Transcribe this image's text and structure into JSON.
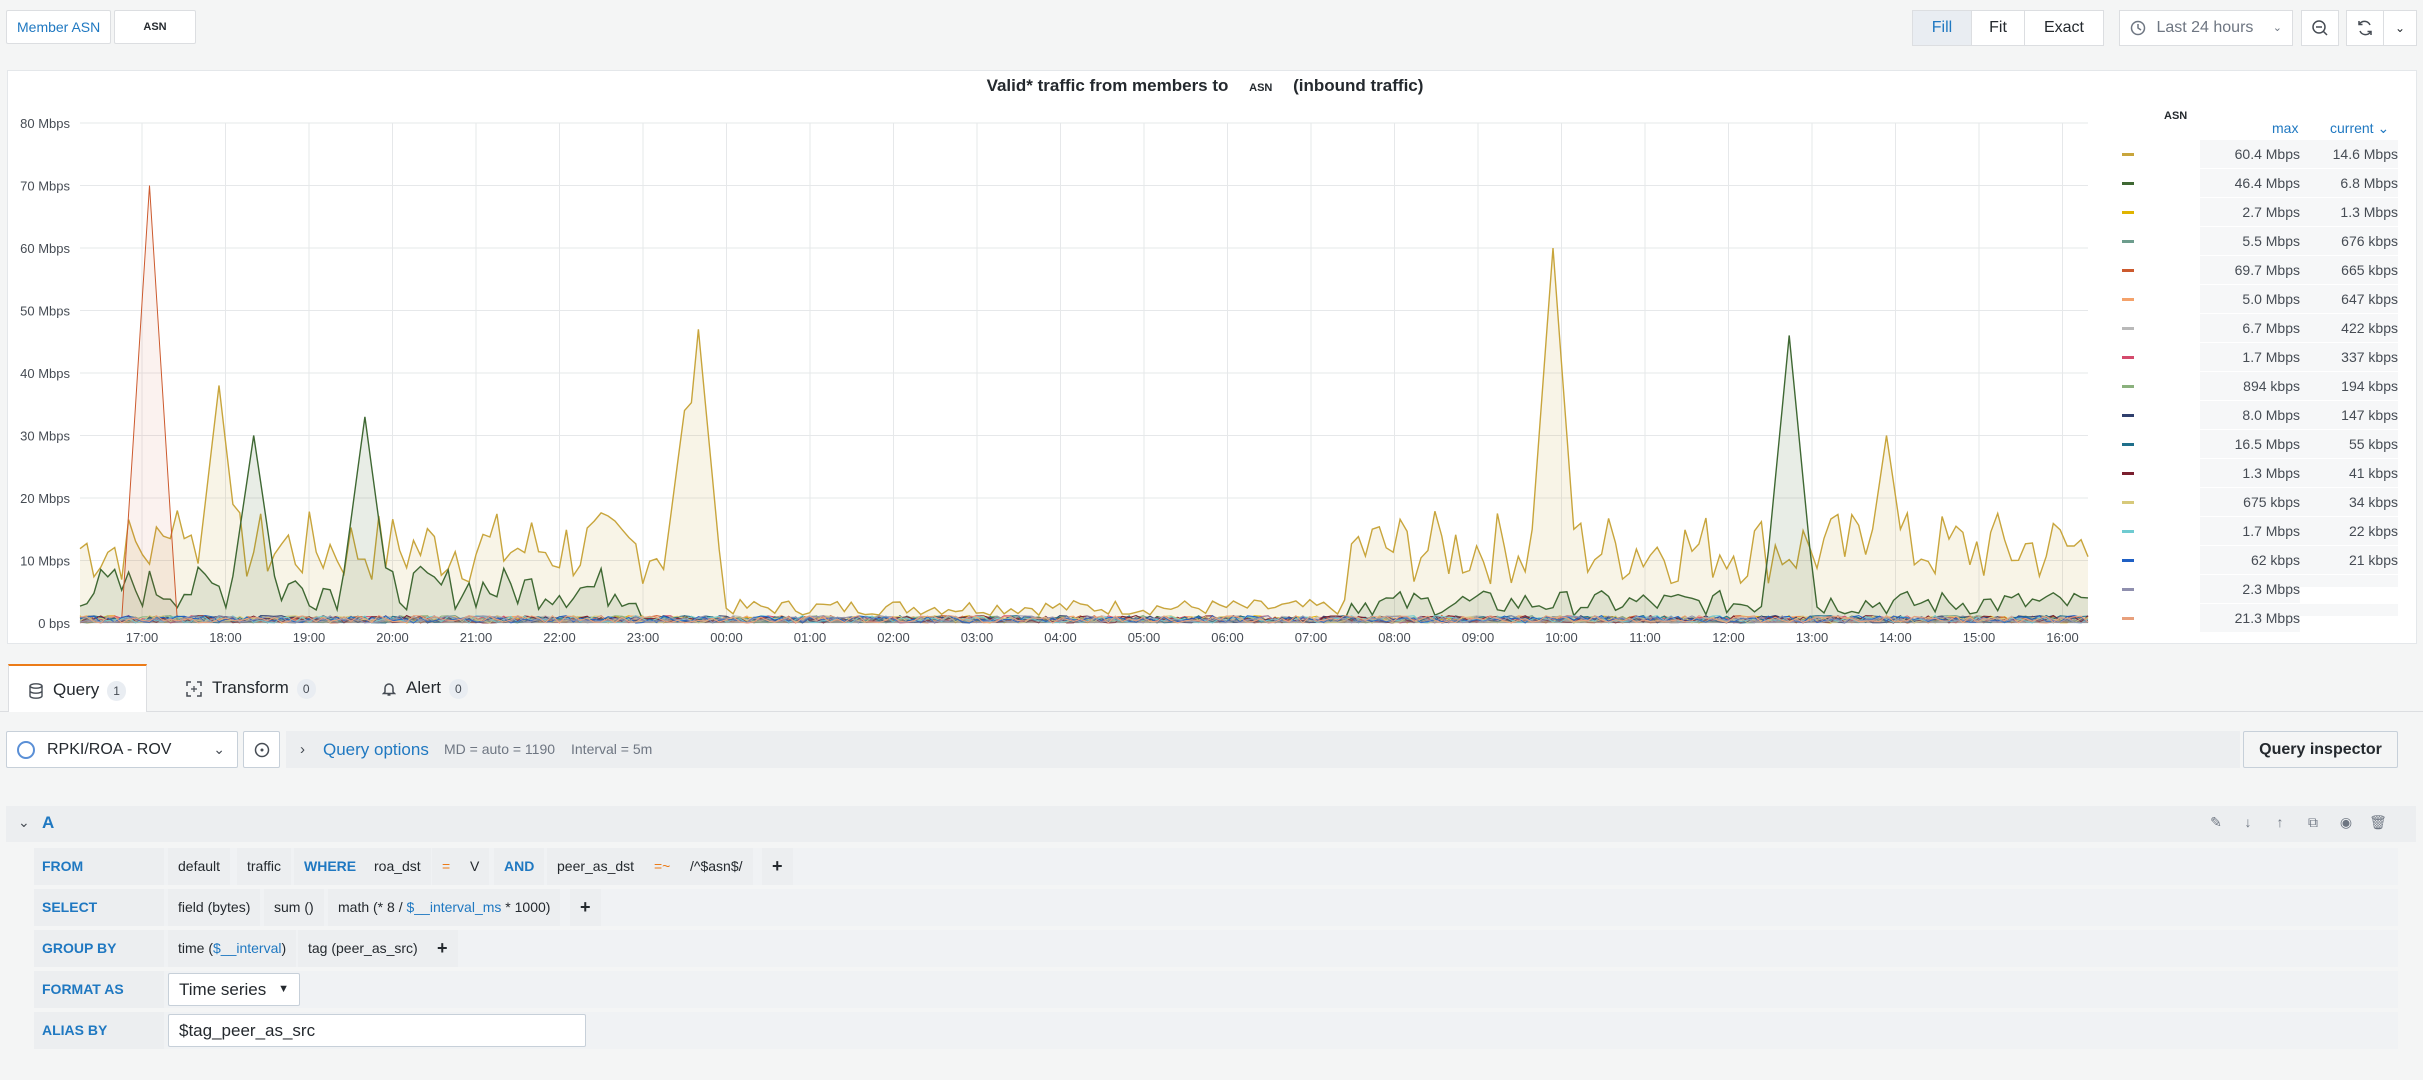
{
  "toolbar": {
    "var_label": "Member ASN",
    "var_value": "ASN",
    "fill": "Fill",
    "fit": "Fit",
    "exact": "Exact",
    "time_range": "Last 24 hours"
  },
  "panel": {
    "title_prefix": "Valid* traffic from members to",
    "title_asn": "ASN",
    "title_suffix": "(inbound traffic)",
    "legend_asn_header": "ASN",
    "legend_max_header": "max",
    "legend_current_header": "current ⌄"
  },
  "chart_data": {
    "type": "area",
    "title": "Valid* traffic from members to ASN (inbound traffic)",
    "ylabel": "",
    "ylim": [
      0,
      80
    ],
    "y_ticks": [
      "0 bps",
      "10 Mbps",
      "20 Mbps",
      "30 Mbps",
      "40 Mbps",
      "50 Mbps",
      "60 Mbps",
      "70 Mbps",
      "80 Mbps"
    ],
    "x_ticks": [
      "17:00",
      "18:00",
      "19:00",
      "20:00",
      "21:00",
      "22:00",
      "23:00",
      "00:00",
      "01:00",
      "02:00",
      "03:00",
      "04:00",
      "05:00",
      "06:00",
      "07:00",
      "08:00",
      "09:00",
      "10:00",
      "11:00",
      "12:00",
      "13:00",
      "14:00",
      "15:00",
      "16:00"
    ],
    "grid": true,
    "legend_placement": "right",
    "series_colors": [
      "#c8a53c",
      "#3f6833",
      "#e0b400",
      "#6d9d8d",
      "#cc5a2e",
      "#f4a26a",
      "#b9b9b9",
      "#d44a6c",
      "#8ab17d",
      "#2f3f6d",
      "#1f6f8b",
      "#7a1f2e",
      "#d7c97a",
      "#6fcbd1",
      "#1f60c4",
      "#8f8fae",
      "#e8a07c"
    ],
    "series": [
      {
        "max": "60.4 Mbps",
        "current": "14.6 Mbps",
        "peaks": [
          [
            0.05,
            18
          ],
          [
            0.07,
            38
          ],
          [
            0.3,
            34
          ],
          [
            0.307,
            47
          ],
          [
            0.735,
            60
          ],
          [
            0.9,
            30
          ]
        ]
      },
      {
        "max": "46.4 Mbps",
        "current": "6.8 Mbps",
        "peaks": [
          [
            0.087,
            30
          ],
          [
            0.143,
            33
          ],
          [
            0.85,
            46
          ]
        ]
      },
      {
        "max": "2.7 Mbps",
        "current": "1.3 Mbps"
      },
      {
        "max": "5.5 Mbps",
        "current": "676 kbps"
      },
      {
        "max": "69.7 Mbps",
        "current": "665 kbps",
        "peaks": [
          [
            0.035,
            70
          ]
        ]
      },
      {
        "max": "5.0 Mbps",
        "current": "647 kbps"
      },
      {
        "max": "6.7 Mbps",
        "current": "422 kbps"
      },
      {
        "max": "1.7 Mbps",
        "current": "337 kbps"
      },
      {
        "max": "894 kbps",
        "current": "194 kbps"
      },
      {
        "max": "8.0 Mbps",
        "current": "147 kbps"
      },
      {
        "max": "16.5 Mbps",
        "current": "55 kbps"
      },
      {
        "max": "1.3 Mbps",
        "current": "41 kbps"
      },
      {
        "max": "675 kbps",
        "current": "34 kbps"
      },
      {
        "max": "1.7 Mbps",
        "current": "22 kbps"
      },
      {
        "max": "62 kbps",
        "current": "21 kbps"
      },
      {
        "max": "2.3 Mbps",
        "current": ""
      },
      {
        "max": "21.3 Mbps",
        "current": ""
      }
    ]
  },
  "tabs": [
    {
      "label": "Query",
      "count": "1"
    },
    {
      "label": "Transform",
      "count": "0"
    },
    {
      "label": "Alert",
      "count": "0"
    }
  ],
  "query": {
    "datasource": "RPKI/ROA - ROV",
    "options_label": "Query options",
    "md": "MD = auto = 1190",
    "interval": "Interval = 5m",
    "inspector": "Query inspector",
    "ref_id": "A",
    "from_kw": "FROM",
    "from_segments": [
      "default",
      "traffic",
      "WHERE",
      "roa_dst",
      "=",
      "V",
      "AND",
      "peer_as_dst",
      "=~",
      "/^$asn$/"
    ],
    "select_kw": "SELECT",
    "select_field": "field (bytes)",
    "select_fn": "sum ()",
    "select_math_a": "math (* 8 / ",
    "select_math_var": "$__interval_ms",
    "select_math_b": " * 1000)",
    "groupby_kw": "GROUP BY",
    "groupby_time_a": "time (",
    "groupby_time_var": "$__interval",
    "groupby_time_b": ")",
    "groupby_tag": "tag (peer_as_src)",
    "format_kw": "FORMAT AS",
    "format_value": "Time series",
    "alias_kw": "ALIAS BY",
    "alias_value": "$tag_peer_as_src",
    "plus": "+"
  }
}
